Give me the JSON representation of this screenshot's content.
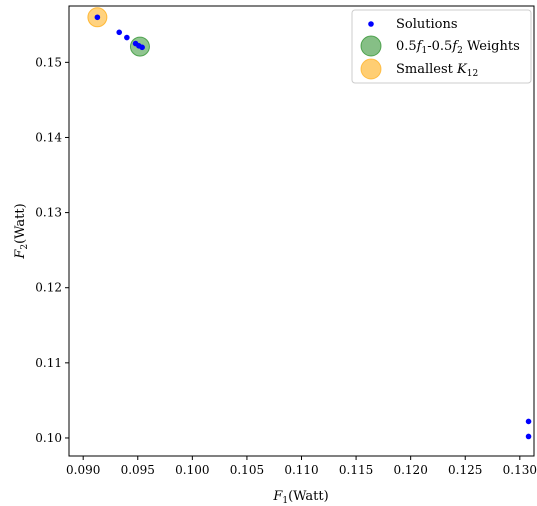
{
  "chart_data": {
    "type": "scatter",
    "xlabel": {
      "base": "F",
      "sub": "1",
      "rest": "(Watt)"
    },
    "ylabel": {
      "base": "F",
      "sub": "2",
      "rest": "(Watt)"
    },
    "xlim": [
      0.0887,
      0.1313
    ],
    "ylim": [
      0.0976,
      0.1575
    ],
    "grid": false,
    "legend_position": "top-right",
    "x_ticks": [
      "0.090",
      "0.095",
      "0.100",
      "0.105",
      "0.110",
      "0.115",
      "0.120",
      "0.125",
      "0.130"
    ],
    "y_ticks": [
      "0.10",
      "0.11",
      "0.12",
      "0.13",
      "0.14",
      "0.15"
    ],
    "series": [
      {
        "name": "Solutions",
        "color": "#0000ff",
        "marker": "small-dot",
        "points": [
          {
            "x": 0.0913,
            "y": 0.156
          },
          {
            "x": 0.0933,
            "y": 0.154
          },
          {
            "x": 0.094,
            "y": 0.1533
          },
          {
            "x": 0.0948,
            "y": 0.1525
          },
          {
            "x": 0.0951,
            "y": 0.1522
          },
          {
            "x": 0.0954,
            "y": 0.152
          },
          {
            "x": 0.1308,
            "y": 0.1022
          },
          {
            "x": 0.1308,
            "y": 0.1002
          }
        ]
      },
      {
        "name": "0.5f1-0.5f2 Weights",
        "color": "#228b22",
        "marker": "large-circle",
        "points": [
          {
            "x": 0.0952,
            "y": 0.1521
          }
        ]
      },
      {
        "name": "Smallest K12",
        "color": "#ffa500",
        "marker": "large-circle",
        "points": [
          {
            "x": 0.0913,
            "y": 0.156
          }
        ]
      }
    ]
  },
  "legend": [
    {
      "parts": [
        {
          "t": "Solutions"
        }
      ]
    },
    {
      "parts": [
        {
          "t": "0.5"
        },
        {
          "t": "f",
          "i": true
        },
        {
          "t": "1",
          "sub": true
        },
        {
          "t": "-0.5"
        },
        {
          "t": "f",
          "i": true
        },
        {
          "t": "2",
          "sub": true
        },
        {
          "t": " Weights"
        }
      ]
    },
    {
      "parts": [
        {
          "t": "Smallest "
        },
        {
          "t": "K",
          "i": true
        },
        {
          "t": "12",
          "sub": true
        }
      ]
    }
  ]
}
